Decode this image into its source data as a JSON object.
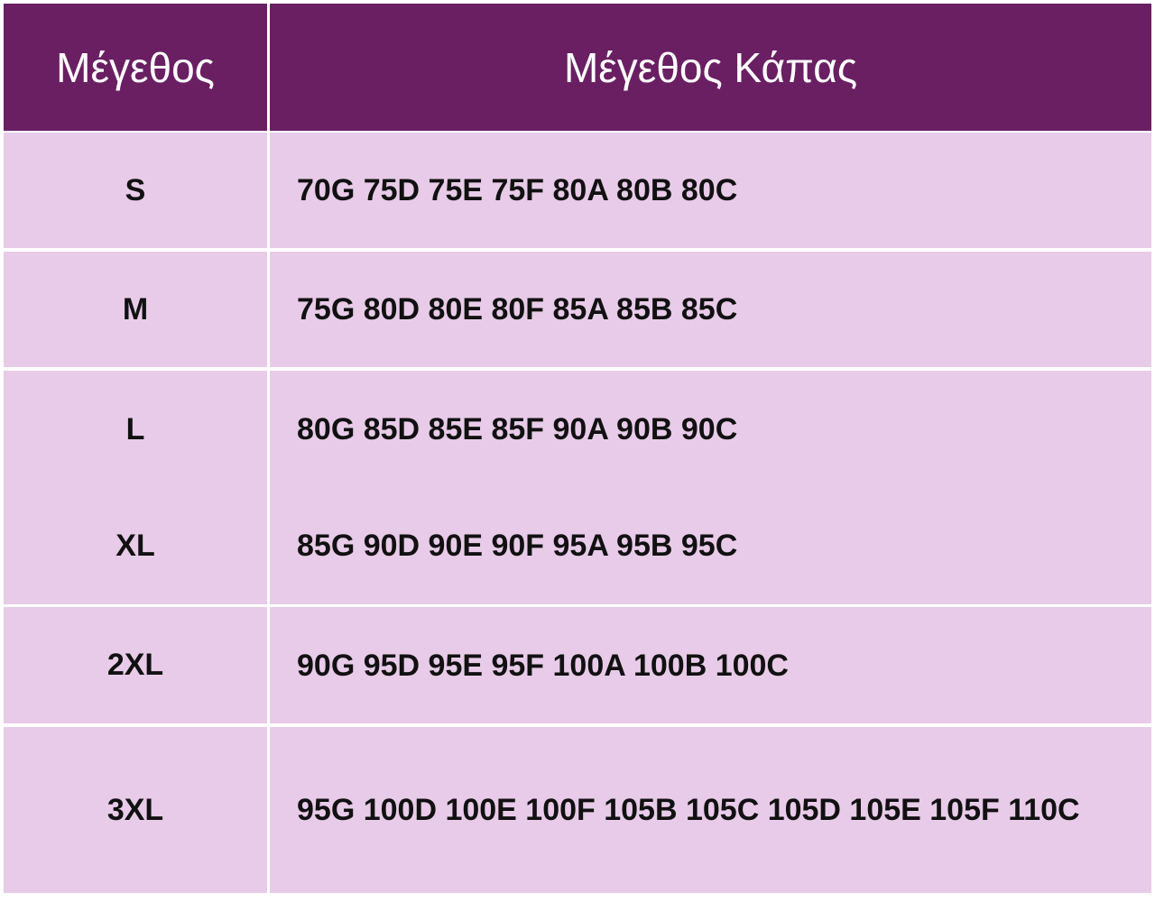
{
  "header": {
    "size": "Μέγεθος",
    "cup_size": "Μέγεθος Κάπας"
  },
  "colors": {
    "header_bg": "#6a1f63",
    "row_bg": "#e8cbe8"
  },
  "rows": [
    {
      "size": "S",
      "cups": "70G 75D 75E 75F 80A 80B 80C"
    },
    {
      "size": "M",
      "cups": "75G 80D 80E 80F 85A 85B 85C"
    },
    {
      "size": "L",
      "cups": "80G 85D 85E 85F 90A 90B 90C"
    },
    {
      "size": "XL",
      "cups": "85G 90D 90E 90F 95A 95B 95C"
    },
    {
      "size": "2XL",
      "cups": "90G 95D 95E 95F 100A 100B 100C"
    },
    {
      "size": "3XL",
      "cups": "95G 100D 100E 100F 105B 105C 105D 105E 105F 110C"
    }
  ]
}
